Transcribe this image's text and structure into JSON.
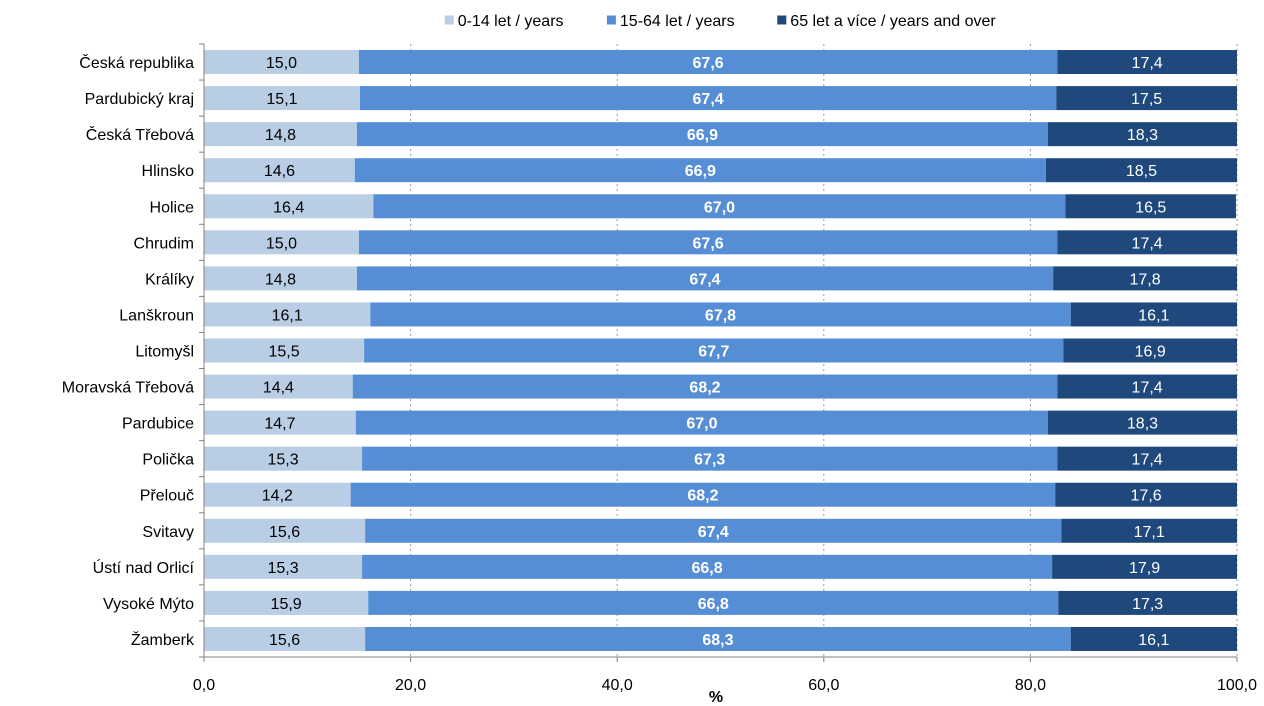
{
  "chart_data": {
    "type": "bar",
    "orientation": "horizontal",
    "stacked": true,
    "categories": [
      "Česká republika",
      "Pardubický kraj",
      "Česká Třebová",
      "Hlinsko",
      "Holice",
      "Chrudim",
      "Králíky",
      "Lanškroun",
      "Litomyšl",
      "Moravská Třebová",
      "Pardubice",
      "Polička",
      "Přelouč",
      "Svitavy",
      "Ústí nad Orlicí",
      "Vysoké Mýto",
      "Žamberk"
    ],
    "series": [
      {
        "name": "0-14 let / years",
        "color": "#b9cde5",
        "label_color": "#000000",
        "label_bold": false,
        "values": [
          15.0,
          15.1,
          14.8,
          14.6,
          16.4,
          15.0,
          14.8,
          16.1,
          15.5,
          14.4,
          14.7,
          15.3,
          14.2,
          15.6,
          15.3,
          15.9,
          15.6
        ],
        "labels": [
          "15,0",
          "15,1",
          "14,8",
          "14,6",
          "16,4",
          "15,0",
          "14,8",
          "16,1",
          "15,5",
          "14,4",
          "14,7",
          "15,3",
          "14,2",
          "15,6",
          "15,3",
          "15,9",
          "15,6"
        ]
      },
      {
        "name": "15-64 let / years",
        "color": "#558ed5",
        "label_color": "#ffffff",
        "label_bold": true,
        "values": [
          67.6,
          67.4,
          66.9,
          66.9,
          67.0,
          67.6,
          67.4,
          67.8,
          67.7,
          68.2,
          67.0,
          67.3,
          68.2,
          67.4,
          66.8,
          66.8,
          68.3
        ],
        "labels": [
          "67,6",
          "67,4",
          "66,9",
          "66,9",
          "67,0",
          "67,6",
          "67,4",
          "67,8",
          "67,7",
          "68,2",
          "67,0",
          "67,3",
          "68,2",
          "67,4",
          "66,8",
          "66,8",
          "68,3"
        ]
      },
      {
        "name": "65 let a více / years and over",
        "color": "#1f497d",
        "label_color": "#ffffff",
        "label_bold": false,
        "values": [
          17.4,
          17.5,
          18.3,
          18.5,
          16.5,
          17.4,
          17.8,
          16.1,
          16.9,
          17.4,
          18.3,
          17.4,
          17.6,
          17.1,
          17.9,
          17.3,
          16.1
        ],
        "labels": [
          "17,4",
          "17,5",
          "18,3",
          "18,5",
          "16,5",
          "17,4",
          "17,8",
          "16,1",
          "16,9",
          "17,4",
          "18,3",
          "17,4",
          "17,6",
          "17,1",
          "17,9",
          "17,3",
          "16,1"
        ]
      }
    ],
    "xlim": [
      0,
      100
    ],
    "xticks": [
      0,
      20,
      40,
      60,
      80,
      100
    ],
    "xtick_labels": [
      "0,0",
      "20,0",
      "40,0",
      "60,0",
      "80,0",
      "100,0"
    ],
    "xlabel": "%",
    "ylabel": "",
    "title": "",
    "grid": "vertical dotted",
    "legend_position": "top"
  }
}
